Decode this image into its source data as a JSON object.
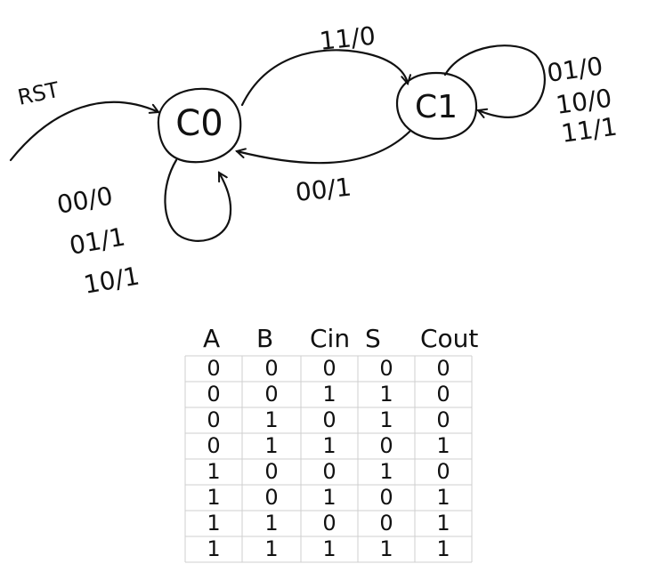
{
  "diagram": {
    "states": [
      {
        "id": "C0",
        "label": "C0"
      },
      {
        "id": "C1",
        "label": "C1"
      }
    ],
    "reset_label": "RST",
    "transitions": {
      "c0_to_c1": "11/0",
      "c1_to_c0": "00/1",
      "c0_self": [
        "00/0",
        "01/1",
        "10/1"
      ],
      "c1_self": [
        "01/0",
        "10/0",
        "11/1"
      ]
    }
  },
  "truth_table": {
    "headers": [
      "A",
      "B",
      "Cin",
      "S",
      "Cout"
    ],
    "rows": [
      [
        "0",
        "0",
        "0",
        "0",
        "0"
      ],
      [
        "0",
        "0",
        "1",
        "1",
        "0"
      ],
      [
        "0",
        "1",
        "0",
        "1",
        "0"
      ],
      [
        "0",
        "1",
        "1",
        "0",
        "1"
      ],
      [
        "1",
        "0",
        "0",
        "1",
        "0"
      ],
      [
        "1",
        "0",
        "1",
        "0",
        "1"
      ],
      [
        "1",
        "1",
        "0",
        "0",
        "1"
      ],
      [
        "1",
        "1",
        "1",
        "1",
        "1"
      ]
    ]
  }
}
